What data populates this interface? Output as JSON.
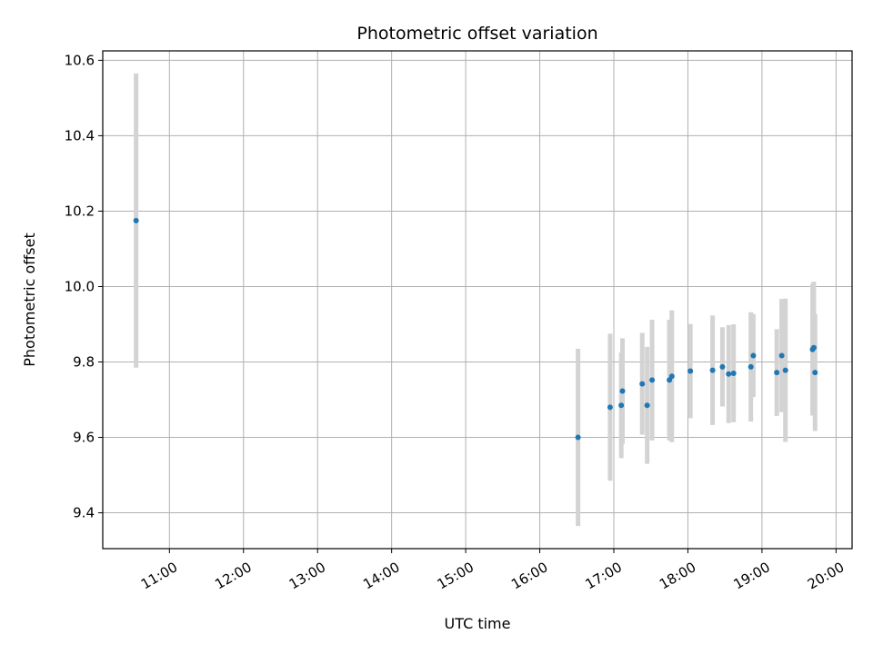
{
  "chart_data": {
    "type": "scatter",
    "title": "Photometric offset variation",
    "xlabel": "UTC time",
    "ylabel": "Photometric offset",
    "xlim": [
      "10:06",
      "20:13"
    ],
    "ylim": [
      9.305,
      10.625
    ],
    "x_ticks": [
      "11:00",
      "12:00",
      "13:00",
      "14:00",
      "15:00",
      "16:00",
      "17:00",
      "18:00",
      "19:00",
      "20:00"
    ],
    "y_ticks": [
      "9.4",
      "9.6",
      "9.8",
      "10.0",
      "10.2",
      "10.4",
      "10.6"
    ],
    "y_tick_values": [
      9.4,
      9.6,
      9.8,
      10.0,
      10.2,
      10.4,
      10.6
    ],
    "grid": true,
    "colors": {
      "point": "#1f77b4",
      "errorbar": "#d3d3d3",
      "grid": "#b0b0b0"
    },
    "points": [
      {
        "time": "10:33",
        "y": 10.175,
        "yerr": 0.39
      },
      {
        "time": "16:31",
        "y": 9.6,
        "yerr": 0.235
      },
      {
        "time": "16:57",
        "y": 9.68,
        "yerr": 0.195
      },
      {
        "time": "17:06",
        "y": 9.685,
        "yerr": 0.14
      },
      {
        "time": "17:07",
        "y": 9.723,
        "yerr": 0.14
      },
      {
        "time": "17:23",
        "y": 9.742,
        "yerr": 0.135
      },
      {
        "time": "17:27",
        "y": 9.685,
        "yerr": 0.155
      },
      {
        "time": "17:31",
        "y": 9.752,
        "yerr": 0.16
      },
      {
        "time": "17:45",
        "y": 9.752,
        "yerr": 0.16
      },
      {
        "time": "17:47",
        "y": 9.762,
        "yerr": 0.175
      },
      {
        "time": "18:02",
        "y": 9.776,
        "yerr": 0.125
      },
      {
        "time": "18:20",
        "y": 9.778,
        "yerr": 0.145
      },
      {
        "time": "18:28",
        "y": 9.787,
        "yerr": 0.105
      },
      {
        "time": "18:33",
        "y": 9.768,
        "yerr": 0.13
      },
      {
        "time": "18:37",
        "y": 9.77,
        "yerr": 0.13
      },
      {
        "time": "18:51",
        "y": 9.787,
        "yerr": 0.145
      },
      {
        "time": "18:53",
        "y": 9.817,
        "yerr": 0.11
      },
      {
        "time": "19:12",
        "y": 9.772,
        "yerr": 0.115
      },
      {
        "time": "19:16",
        "y": 9.817,
        "yerr": 0.15
      },
      {
        "time": "19:19",
        "y": 9.778,
        "yerr": 0.19
      },
      {
        "time": "19:41",
        "y": 9.833,
        "yerr": 0.175
      },
      {
        "time": "19:42",
        "y": 9.838,
        "yerr": 0.175
      },
      {
        "time": "19:43",
        "y": 9.772,
        "yerr": 0.155
      }
    ]
  }
}
